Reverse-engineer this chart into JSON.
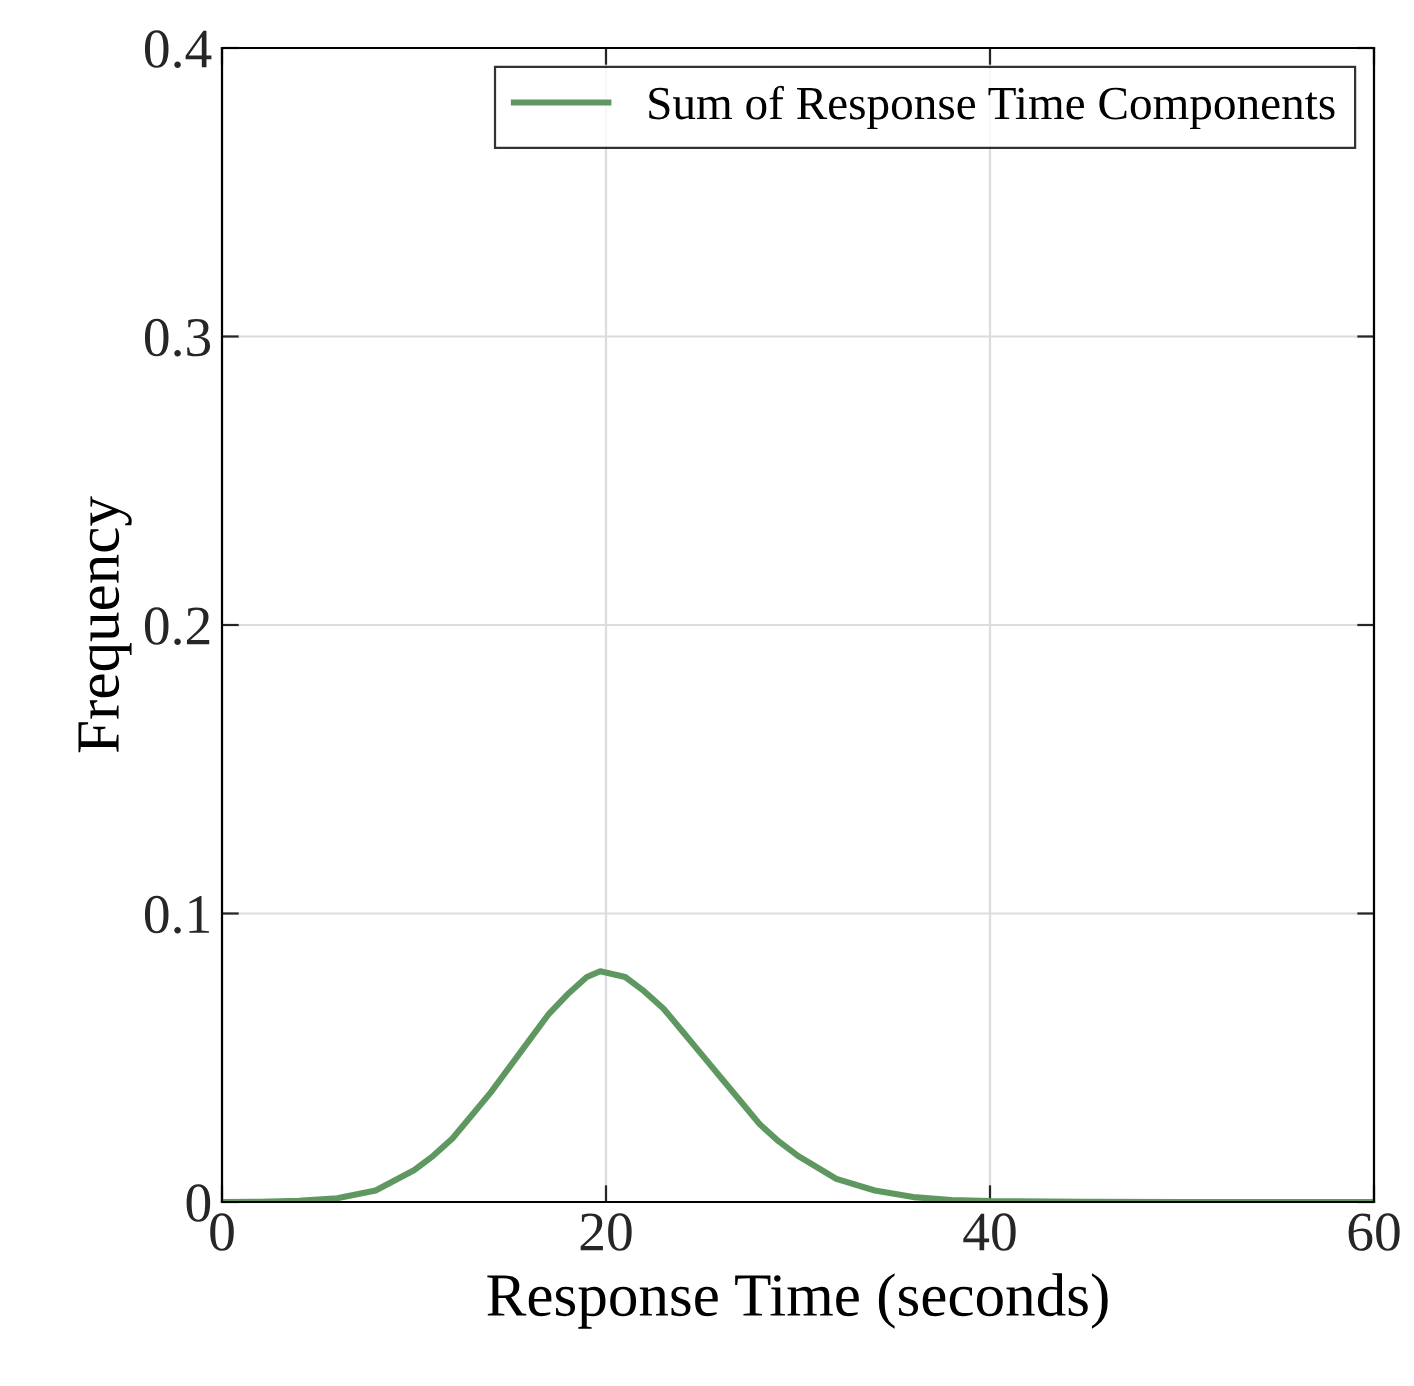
{
  "chart_data": {
    "type": "line",
    "xlabel": "Response Time (seconds)",
    "ylabel": "Frequency",
    "x": [
      0,
      2,
      4,
      6,
      8,
      10,
      11,
      12,
      13,
      14,
      15,
      16,
      17,
      18,
      19,
      19.7,
      21,
      22,
      23,
      24,
      25,
      26,
      27,
      28,
      29,
      30,
      32,
      34,
      36,
      38,
      40,
      45,
      50,
      55,
      60
    ],
    "series": [
      {
        "name": "Sum of Response Time Components",
        "color": "#5e9860",
        "values": [
          0,
          0.0001,
          0.0004,
          0.0013,
          0.004,
          0.011,
          0.016,
          0.022,
          0.03,
          0.038,
          0.047,
          0.056,
          0.065,
          0.072,
          0.078,
          0.08,
          0.078,
          0.073,
          0.067,
          0.059,
          0.051,
          0.043,
          0.035,
          0.027,
          0.021,
          0.016,
          0.008,
          0.004,
          0.0017,
          0.0007,
          0.0003,
          0.0001,
          0,
          0,
          0
        ]
      }
    ],
    "xlim": [
      0,
      60
    ],
    "ylim": [
      0,
      0.4
    ],
    "xticks": [
      0,
      20,
      40,
      60
    ],
    "yticks": [
      0,
      0.1,
      0.2,
      0.3,
      0.4
    ],
    "grid": true,
    "legend": "top right",
    "marker": "none",
    "line_style": "solid"
  }
}
